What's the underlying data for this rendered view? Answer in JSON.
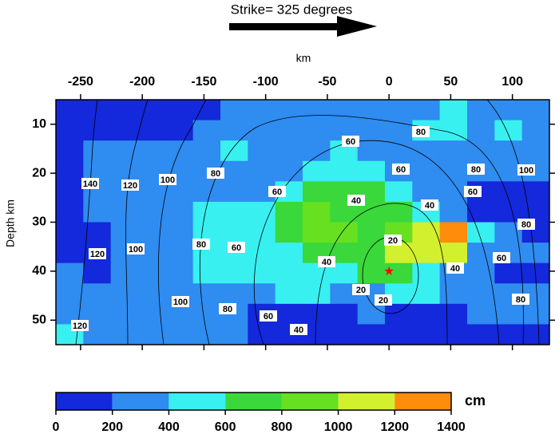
{
  "chart_data": {
    "type": "heatmap",
    "title": "Strike= 325 degrees",
    "x_label": "km",
    "y_label": "Depth km",
    "xlim": [
      -270,
      130
    ],
    "ylim": [
      5,
      55
    ],
    "xticks": [
      -250,
      -200,
      -150,
      -100,
      -50,
      0,
      50,
      100
    ],
    "yticks": [
      10,
      20,
      30,
      40,
      50
    ],
    "z": [
      [
        100,
        100,
        100,
        100,
        100,
        100,
        300,
        300,
        300,
        300,
        300,
        300,
        300,
        300,
        500,
        300,
        300,
        300
      ],
      [
        100,
        100,
        100,
        100,
        100,
        300,
        300,
        300,
        300,
        300,
        300,
        300,
        300,
        500,
        500,
        300,
        500,
        300
      ],
      [
        100,
        300,
        300,
        300,
        300,
        300,
        500,
        300,
        300,
        300,
        500,
        300,
        300,
        300,
        300,
        300,
        300,
        300
      ],
      [
        100,
        300,
        300,
        300,
        300,
        300,
        300,
        300,
        300,
        500,
        500,
        500,
        300,
        300,
        300,
        300,
        300,
        300
      ],
      [
        100,
        300,
        300,
        300,
        300,
        300,
        300,
        300,
        500,
        700,
        700,
        700,
        500,
        300,
        300,
        100,
        100,
        100
      ],
      [
        100,
        300,
        300,
        300,
        300,
        500,
        500,
        500,
        700,
        900,
        700,
        700,
        700,
        500,
        300,
        100,
        100,
        100
      ],
      [
        100,
        100,
        300,
        300,
        300,
        500,
        500,
        500,
        700,
        900,
        900,
        700,
        900,
        1100,
        1300,
        500,
        300,
        100
      ],
      [
        100,
        100,
        300,
        300,
        300,
        500,
        500,
        500,
        500,
        700,
        700,
        700,
        1100,
        1100,
        1100,
        300,
        300,
        300
      ],
      [
        300,
        100,
        300,
        300,
        300,
        500,
        500,
        500,
        500,
        500,
        500,
        700,
        700,
        500,
        300,
        300,
        100,
        100
      ],
      [
        300,
        300,
        300,
        300,
        300,
        300,
        300,
        300,
        500,
        500,
        300,
        300,
        500,
        500,
        300,
        300,
        300,
        300
      ],
      [
        300,
        300,
        300,
        300,
        300,
        300,
        300,
        100,
        100,
        100,
        100,
        300,
        100,
        100,
        100,
        300,
        300,
        300
      ],
      [
        500,
        300,
        300,
        300,
        300,
        300,
        300,
        100,
        100,
        100,
        100,
        100,
        100,
        100,
        100,
        100,
        100,
        100
      ]
    ],
    "colorbar": {
      "label": "cm",
      "ticks": [
        0,
        200,
        400,
        600,
        800,
        1000,
        1200,
        1400
      ],
      "colors": [
        "#1428dc",
        "#2f8cf0",
        "#38f0f0",
        "#3ad83a",
        "#66e020",
        "#d2f02d",
        "#ff8c0a"
      ]
    },
    "contour_labels": [
      80,
      60,
      60,
      80,
      100,
      140,
      120,
      100,
      80,
      60,
      40,
      40,
      60,
      80,
      20,
      80,
      60,
      100,
      120,
      40,
      40,
      60,
      20,
      20,
      100,
      80,
      60,
      40,
      80,
      120
    ],
    "hypocenter": {
      "x": 0,
      "y": 40,
      "color": "#ff0000"
    }
  }
}
